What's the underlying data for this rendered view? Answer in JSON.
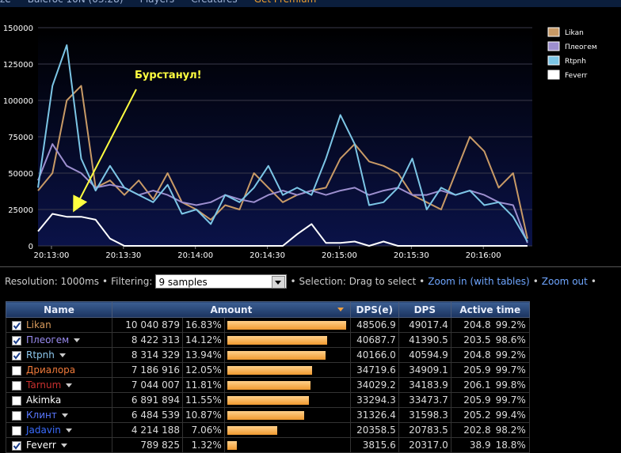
{
  "nav": {
    "items": [
      "ze",
      "Baleroc 10N (03:28)",
      "Players",
      "Creatures",
      "Get Premium"
    ],
    "separator": "•"
  },
  "chart_data": {
    "type": "line",
    "annotation": "Бурстанул!",
    "x": [
      0,
      6,
      12,
      18,
      24,
      30,
      36,
      42,
      48,
      54,
      60,
      66,
      72,
      78,
      84,
      90,
      96,
      102,
      108,
      114,
      120,
      126,
      132,
      138,
      144,
      150,
      156,
      162,
      168,
      174,
      180,
      186,
      192,
      198,
      204
    ],
    "xlim": [
      0,
      206
    ],
    "xticks": [
      {
        "value": 5.6,
        "label": "20:13:00"
      },
      {
        "value": 35.6,
        "label": "20:13:30"
      },
      {
        "value": 65.6,
        "label": "20:14:00"
      },
      {
        "value": 95.6,
        "label": "20:14:30"
      },
      {
        "value": 125.6,
        "label": "20:15:00"
      },
      {
        "value": 155.6,
        "label": "20:15:30"
      },
      {
        "value": 185.6,
        "label": "20:16:00"
      }
    ],
    "ylim": [
      0,
      150000
    ],
    "yticks": [
      0,
      25000,
      50000,
      75000,
      100000,
      125000,
      150000
    ],
    "grid": true,
    "legend": "right",
    "series": [
      {
        "name": "Likan",
        "color": "#c89a66",
        "values": [
          38000,
          50000,
          100000,
          110000,
          40000,
          45000,
          35000,
          45000,
          32000,
          50000,
          30000,
          25000,
          18000,
          28000,
          25000,
          50000,
          40000,
          30000,
          35000,
          38000,
          40000,
          60000,
          70000,
          58000,
          55000,
          50000,
          35000,
          30000,
          25000,
          50000,
          75000,
          65000,
          40000,
          50000,
          5000
        ]
      },
      {
        "name": "Плеогем",
        "color": "#9d8fcf",
        "values": [
          45000,
          70000,
          55000,
          50000,
          40000,
          42000,
          40000,
          35000,
          38000,
          35000,
          30000,
          28000,
          30000,
          35000,
          32000,
          30000,
          35000,
          38000,
          35000,
          38000,
          35000,
          38000,
          40000,
          35000,
          38000,
          40000,
          35000,
          35000,
          38000,
          35000,
          38000,
          35000,
          30000,
          28000,
          2000
        ]
      },
      {
        "name": "Rtpnh",
        "color": "#7cc6e6",
        "values": [
          40000,
          110000,
          138000,
          60000,
          38000,
          55000,
          40000,
          35000,
          30000,
          42000,
          22000,
          25000,
          15000,
          35000,
          30000,
          40000,
          55000,
          35000,
          40000,
          35000,
          60000,
          90000,
          70000,
          28000,
          30000,
          40000,
          60000,
          25000,
          40000,
          35000,
          38000,
          28000,
          30000,
          20000,
          3000
        ]
      },
      {
        "name": "Feverr",
        "color": "#ffffff",
        "values": [
          10000,
          22000,
          20000,
          20000,
          18000,
          5000,
          0,
          0,
          0,
          0,
          0,
          0,
          0,
          0,
          0,
          0,
          0,
          0,
          8000,
          15000,
          2000,
          2000,
          3000,
          0,
          3000,
          0,
          0,
          0,
          0,
          0,
          0,
          0,
          0,
          0,
          0
        ]
      }
    ]
  },
  "controls": {
    "resolution": "Resolution: 1000ms",
    "filtering": "Filtering:",
    "filter_value": "9 samples",
    "selection": "Selection: Drag to select",
    "zoom_in": "Zoom in (with tables)",
    "zoom_out": "Zoom out",
    "separator": "•"
  },
  "table": {
    "headers": [
      "Name",
      "Amount",
      "DPS(e)",
      "DPS",
      "Active time"
    ],
    "rows": [
      {
        "checked": true,
        "menu": false,
        "color": "#d89a5c",
        "name": "Likan",
        "amount": "10 040 879",
        "share": "16.83%",
        "dps_e": "48506.9",
        "dps": "49017.4",
        "active_time": "204.8",
        "active_share": "99.2%"
      },
      {
        "checked": true,
        "menu": true,
        "color": "#9a8cf0",
        "name": "Плеогем",
        "amount": "8 422 313",
        "share": "14.12%",
        "dps_e": "40687.7",
        "dps": "41390.5",
        "active_time": "203.5",
        "active_share": "98.6%"
      },
      {
        "checked": true,
        "menu": true,
        "color": "#8ec8ee",
        "name": "Rtpnh",
        "amount": "8 314 329",
        "share": "13.94%",
        "dps_e": "40166.0",
        "dps": "40594.9",
        "active_time": "204.8",
        "active_share": "99.2%"
      },
      {
        "checked": false,
        "menu": false,
        "color": "#f07a3a",
        "name": "Дриалора",
        "amount": "7 186 916",
        "share": "12.05%",
        "dps_e": "34719.6",
        "dps": "34909.1",
        "active_time": "205.9",
        "active_share": "99.7%"
      },
      {
        "checked": false,
        "menu": true,
        "color": "#c8302e",
        "name": "Tarnum",
        "amount": "7 044 007",
        "share": "11.81%",
        "dps_e": "34029.2",
        "dps": "34183.9",
        "active_time": "206.1",
        "active_share": "99.8%"
      },
      {
        "checked": false,
        "menu": false,
        "color": "#ffffff",
        "name": "Akimka",
        "amount": "6 891 894",
        "share": "11.55%",
        "dps_e": "33294.3",
        "dps": "33473.7",
        "active_time": "205.9",
        "active_share": "99.7%"
      },
      {
        "checked": false,
        "menu": true,
        "color": "#5a78ff",
        "name": "Клинт",
        "amount": "6 484 539",
        "share": "10.87%",
        "dps_e": "31326.4",
        "dps": "31598.3",
        "active_time": "205.2",
        "active_share": "99.4%"
      },
      {
        "checked": false,
        "menu": true,
        "color": "#3a6cff",
        "name": "Jadavin",
        "amount": "4 214 188",
        "share": "7.06%",
        "dps_e": "20358.5",
        "dps": "20783.5",
        "active_time": "202.8",
        "active_share": "98.2%"
      },
      {
        "checked": true,
        "menu": true,
        "color": "#ffffff",
        "name": "Feverr",
        "amount": "789 825",
        "share": "1.32%",
        "dps_e": "3815.6",
        "dps": "20317.0",
        "active_time": "38.9",
        "active_share": "18.8%"
      }
    ]
  }
}
